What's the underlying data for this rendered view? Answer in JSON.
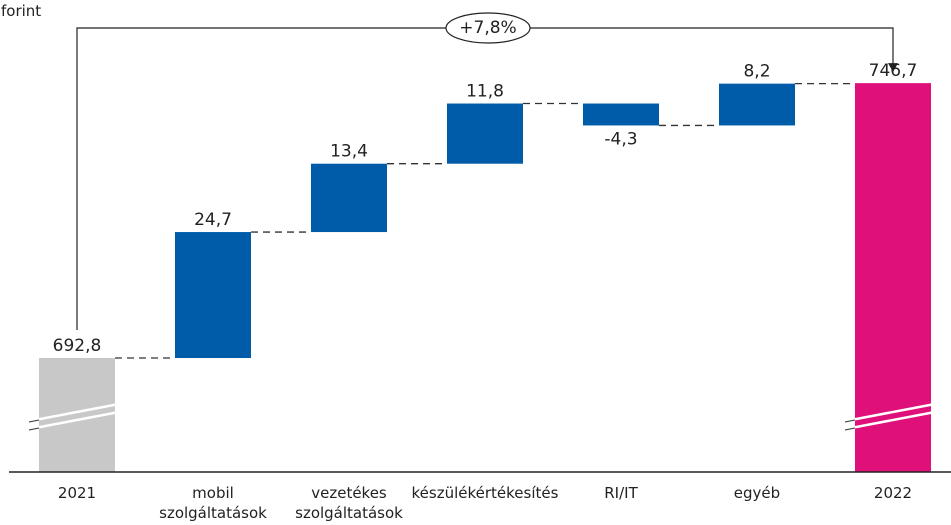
{
  "chart_data": {
    "type": "waterfall",
    "title": "Milliárd forint",
    "annotation": "+7,8%",
    "categories": [
      "2021",
      "mobil szolgáltatások",
      "vezetékes szolgáltatások",
      "készülékértékesítés",
      "RI/IT",
      "egyéb",
      "2022"
    ],
    "values": [
      692.8,
      24.7,
      13.4,
      11.8,
      -4.3,
      8.2,
      746.7
    ],
    "value_labels": [
      "692,8",
      "24,7",
      "13,4",
      "11,8",
      "-4,3",
      "8,2",
      "746,7"
    ],
    "colors": [
      "#c8c8c8",
      "#005ca8",
      "#005ca8",
      "#005ca8",
      "#005ca8",
      "#005ca8",
      "#e0107a"
    ],
    "ylim": [
      670.45,
      763
    ]
  }
}
